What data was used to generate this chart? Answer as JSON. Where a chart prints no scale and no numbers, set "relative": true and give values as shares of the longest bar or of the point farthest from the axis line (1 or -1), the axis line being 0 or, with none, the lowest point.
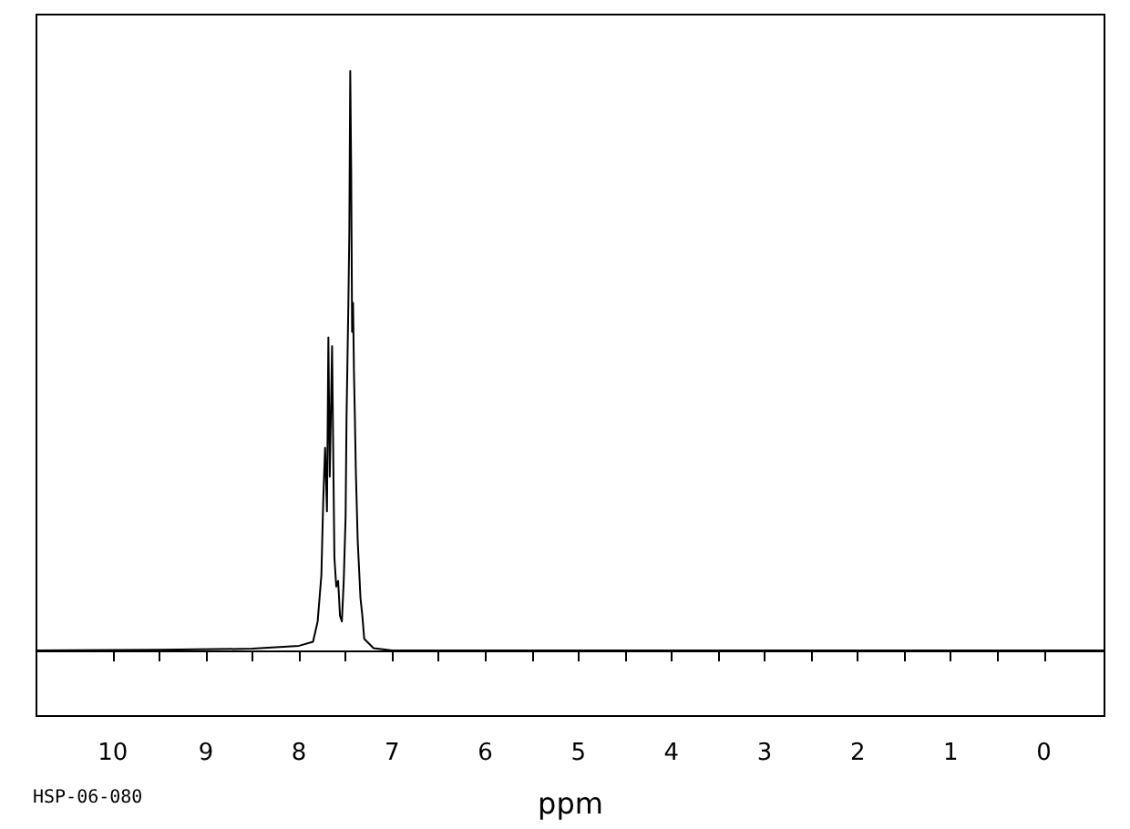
{
  "chart_data": {
    "type": "line",
    "relative": true,
    "xlabel": "ppm",
    "annotations": [
      "HSP-06-080"
    ],
    "color": "#000000",
    "marker": "none",
    "line_style": "solid",
    "grid": false,
    "xlim": [
      10.82,
      -0.65
    ],
    "xticks": [
      10,
      {
        "value": 9.5,
        "label": null
      },
      9,
      {
        "value": 8.5,
        "label": null
      },
      8,
      {
        "value": 7.5,
        "label": null
      },
      7,
      {
        "value": 6.5,
        "label": null
      },
      6,
      {
        "value": 5.5,
        "label": null
      },
      5,
      {
        "value": 4.5,
        "label": null
      },
      4,
      {
        "value": 3.5,
        "label": null
      },
      3,
      {
        "value": 2.5,
        "label": null
      },
      2,
      {
        "value": 1.5,
        "label": null
      },
      1,
      {
        "value": 0.5,
        "label": null
      },
      0
    ],
    "x": [
      10.82,
      9.5,
      8.5,
      8.0,
      7.85,
      7.8,
      7.76,
      7.74,
      7.72,
      7.7,
      7.685,
      7.67,
      7.645,
      7.63,
      7.62,
      7.6,
      7.58,
      7.56,
      7.54,
      7.52,
      7.5,
      7.49,
      7.47,
      7.46,
      7.45,
      7.44,
      7.43,
      7.42,
      7.41,
      7.4,
      7.39,
      7.37,
      7.34,
      7.32,
      7.3,
      7.2,
      7.0,
      6.5,
      3.0,
      -0.65
    ],
    "values": [
      0,
      0.001,
      0.003,
      0.008,
      0.015,
      0.05,
      0.13,
      0.26,
      0.35,
      0.24,
      0.54,
      0.3,
      0.525,
      0.3,
      0.16,
      0.11,
      0.12,
      0.06,
      0.05,
      0.12,
      0.23,
      0.4,
      0.6,
      0.72,
      1.0,
      0.83,
      0.55,
      0.6,
      0.48,
      0.4,
      0.31,
      0.19,
      0.09,
      0.06,
      0.02,
      0.004,
      0,
      0,
      0,
      0
    ]
  }
}
